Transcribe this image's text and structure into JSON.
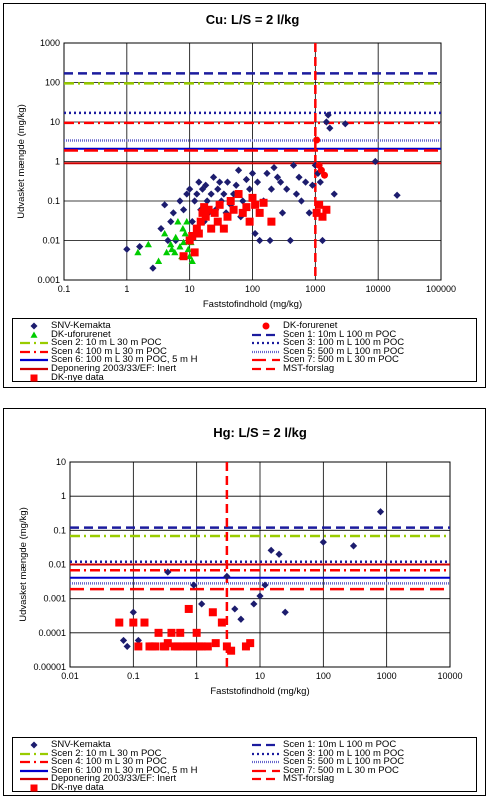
{
  "chart_data": [
    {
      "type": "scatter",
      "title": "Cu: L/S = 2 l/kg",
      "xlabel": "Faststofindhold (mg/kg)",
      "ylabel": "Udvasket mængde (mg/kg)",
      "xscale": "log",
      "yscale": "log",
      "xlim": [
        0.1,
        100000
      ],
      "ylim": [
        0.001,
        1000
      ],
      "xticks": [
        "0.1",
        "1",
        "10",
        "100",
        "1000",
        "10000",
        "100000"
      ],
      "yticks": [
        "0.001",
        "0.01",
        "0.1",
        "1",
        "10",
        "100",
        "1000"
      ],
      "grid": true,
      "hlines": [
        {
          "name": "Scen 1: 10m L 100 m POC",
          "y": 170,
          "color": "#1c1c9e",
          "dash": "dash"
        },
        {
          "name": "Scen 2: 10 m L 30 m POC",
          "y": 95,
          "color": "#99cc00",
          "dash": "dashdot"
        },
        {
          "name": "Scen 3: 100 m L 100 m POC",
          "y": 17,
          "color": "#1c1c9e",
          "dash": "dot"
        },
        {
          "name": "Scen 4: 100 m L 30 m POC",
          "y": 9.5,
          "color": "#ff0000",
          "dash": "dashdot"
        },
        {
          "name": "Scen 5: 500 m L 100 m POC",
          "y": 3.4,
          "color": "#6666cc",
          "dash": "dense"
        },
        {
          "name": "Scen 6: 100 m L 30 m POC, 5 m H",
          "y": 2.1,
          "color": "#0000cc",
          "dash": "solid"
        },
        {
          "name": "Scen 7: 500 m L 30 m POC",
          "y": 1.9,
          "color": "#ff0000",
          "dash": "longdash"
        },
        {
          "name": "Deponering 2003/33/EF: Inert",
          "y": 0.9,
          "color": "#cc0000",
          "dash": "solid"
        }
      ],
      "vlines": [
        {
          "name": "MST-forslag",
          "x": 1000,
          "color": "#ff0000",
          "dash": "dash"
        }
      ],
      "series": [
        {
          "name": "SNV-Kemakta",
          "marker": "diamond",
          "color": "#1c1c6e",
          "x": [
            1,
            1.6,
            2.6,
            3.5,
            4,
            4.5,
            5,
            5.5,
            6,
            7,
            8,
            9,
            10,
            11,
            12,
            13,
            14,
            15,
            16,
            17,
            18,
            19,
            20,
            22,
            24,
            26,
            28,
            30,
            32,
            35,
            38,
            40,
            45,
            50,
            55,
            60,
            65,
            70,
            80,
            90,
            100,
            110,
            120,
            130,
            150,
            170,
            190,
            200,
            220,
            250,
            280,
            300,
            350,
            400,
            450,
            500,
            550,
            600,
            700,
            800,
            900,
            1000,
            1100,
            1200,
            1300,
            1500,
            1600,
            1700,
            2000,
            3000,
            9000,
            20000
          ],
          "y": [
            0.006,
            0.007,
            0.002,
            0.02,
            0.08,
            0.01,
            0.03,
            0.05,
            0.01,
            0.1,
            0.06,
            0.15,
            0.2,
            0.03,
            0.1,
            0.15,
            0.3,
            0.06,
            0.2,
            0.03,
            0.25,
            0.1,
            0.05,
            0.15,
            0.4,
            0.06,
            0.2,
            0.3,
            0.1,
            0.15,
            0.05,
            0.3,
            0.08,
            0.15,
            0.25,
            0.6,
            0.04,
            0.1,
            0.35,
            0.2,
            0.5,
            0.015,
            0.3,
            0.01,
            0.1,
            0.5,
            0.01,
            0.2,
            0.7,
            0.4,
            0.3,
            0.05,
            0.2,
            0.01,
            0.8,
            0.15,
            0.4,
            0.1,
            0.3,
            0.05,
            0.25,
            0.8,
            0.5,
            0.3,
            0.01,
            10,
            15,
            7,
            0.15,
            9,
            1,
            0.14
          ]
        },
        {
          "name": "DK-uforurenet",
          "marker": "triangle",
          "color": "#00cc00",
          "x": [
            1.5,
            2.2,
            3.2,
            4,
            4.3,
            5,
            5.2,
            5.8,
            6,
            6.5,
            7,
            7.5,
            7.8,
            8,
            8.5,
            9,
            9.5,
            10,
            10.5,
            11
          ],
          "y": [
            0.005,
            0.008,
            0.003,
            0.015,
            0.005,
            0.008,
            0.006,
            0.005,
            0.012,
            0.03,
            0.007,
            0.004,
            0.02,
            0.009,
            0.015,
            0.03,
            0.006,
            0.004,
            0.009,
            0.003
          ]
        },
        {
          "name": "DK-forurenet",
          "marker": "circle",
          "color": "#ff0000",
          "x": [
            1050,
            1150,
            1250,
            1400
          ],
          "y": [
            3.5,
            0.8,
            0.6,
            0.45
          ]
        },
        {
          "name": "DK-nye data",
          "marker": "square",
          "color": "#ff0000",
          "x": [
            8,
            10,
            11,
            12,
            13,
            14,
            15,
            16,
            17,
            18,
            20,
            22,
            25,
            28,
            30,
            35,
            40,
            45,
            50,
            60,
            70,
            80,
            90,
            100,
            110,
            130,
            150,
            200,
            1050,
            1150,
            1300,
            1500
          ],
          "y": [
            0.004,
            0.01,
            0.013,
            0.005,
            0.02,
            0.015,
            0.03,
            0.05,
            0.07,
            0.04,
            0.06,
            0.02,
            0.05,
            0.03,
            0.08,
            0.02,
            0.04,
            0.1,
            0.06,
            0.15,
            0.05,
            0.07,
            0.03,
            0.12,
            0.08,
            0.05,
            0.09,
            0.03,
            0.05,
            0.08,
            0.04,
            0.06
          ]
        }
      ],
      "legend": {
        "placement": "bottom",
        "entries": [
          "SNV-Kemakta",
          "DK-uforurenet",
          "Scen 2: 10 m L 30 m POC",
          "Scen 4: 100 m L 30 m POC",
          "Scen 6: 100 m L 30 m POC, 5 m H",
          "Deponering 2003/33/EF: Inert",
          "DK-nye data",
          "DK-forurenet",
          "Scen 1: 10m L 100 m POC",
          "Scen 3: 100 m L 100 m POC",
          "Scen 5: 500 m L 100 m POC",
          "Scen 7: 500 m L 30 m POC",
          "MST-forslag"
        ]
      }
    },
    {
      "type": "scatter",
      "title": "Hg: L/S = 2 l/kg",
      "xlabel": "Faststofindhold (mg/kg)",
      "ylabel": "Udvasket mængde (mg/kg)",
      "xscale": "log",
      "yscale": "log",
      "xlim": [
        0.01,
        10000
      ],
      "ylim": [
        1e-05,
        10
      ],
      "xticks": [
        "0.01",
        "0.1",
        "1",
        "10",
        "100",
        "1000",
        "10000"
      ],
      "yticks": [
        "0.00001",
        "0.0001",
        "0.001",
        "0.01",
        "0.1",
        "1",
        "10"
      ],
      "grid": true,
      "hlines": [
        {
          "name": "Scen 1: 10m L 100 m POC",
          "y": 0.12,
          "color": "#1c1c9e",
          "dash": "dash"
        },
        {
          "name": "Scen 2: 10 m L 30 m POC",
          "y": 0.068,
          "color": "#99cc00",
          "dash": "dashdot"
        },
        {
          "name": "Scen 3: 100 m L 100 m POC",
          "y": 0.012,
          "color": "#1c1c9e",
          "dash": "dot"
        },
        {
          "name": "Scen 4: 100 m L 30 m POC",
          "y": 0.0068,
          "color": "#ff0000",
          "dash": "dashdot"
        },
        {
          "name": "Scen 6: 100 m L 30 m POC, 5 m H",
          "y": 0.0041,
          "color": "#0000cc",
          "dash": "solid"
        },
        {
          "name": "Scen 5: 500 m L 100 m POC",
          "y": 0.0028,
          "color": "#6666cc",
          "dash": "dense"
        },
        {
          "name": "Scen 7: 500 m L 30 m POC",
          "y": 0.0019,
          "color": "#ff0000",
          "dash": "longdash"
        },
        {
          "name": "Deponering 2003/33/EF: Inert",
          "y": 0.01,
          "color": "#cc0000",
          "dash": "solid"
        }
      ],
      "vlines": [
        {
          "name": "MST-forslag",
          "x": 3,
          "color": "#ff0000",
          "dash": "dash"
        }
      ],
      "series": [
        {
          "name": "SNV-Kemakta",
          "marker": "diamond",
          "color": "#1c1c6e",
          "x": [
            0.07,
            0.08,
            0.1,
            0.12,
            0.35,
            0.9,
            1.2,
            3,
            4,
            5,
            8,
            10,
            12,
            15,
            20,
            25,
            100,
            300,
            800
          ],
          "y": [
            6e-05,
            4e-05,
            0.0004,
            6e-05,
            0.006,
            0.0025,
            0.0007,
            0.0045,
            0.0005,
            0.00025,
            0.0007,
            0.0012,
            0.0025,
            0.026,
            0.02,
            0.0004,
            0.045,
            0.035,
            0.35
          ]
        },
        {
          "name": "DK-nye data",
          "marker": "square",
          "color": "#ff0000",
          "x": [
            0.06,
            0.1,
            0.12,
            0.15,
            0.18,
            0.2,
            0.22,
            0.25,
            0.3,
            0.32,
            0.35,
            0.4,
            0.45,
            0.5,
            0.55,
            0.6,
            0.7,
            0.75,
            0.8,
            0.9,
            1,
            1.1,
            1.2,
            1.5,
            1.8,
            2,
            2.5,
            3,
            3.5,
            6,
            7
          ],
          "y": [
            0.0002,
            0.0002,
            4e-05,
            0.0002,
            4e-05,
            4e-05,
            4e-05,
            0.0001,
            4e-05,
            4e-05,
            5e-05,
            0.0001,
            4e-05,
            4e-05,
            0.0001,
            4e-05,
            4e-05,
            0.0005,
            4e-05,
            4e-05,
            0.0001,
            4e-05,
            4e-05,
            4e-05,
            0.0004,
            5e-05,
            0.0002,
            4e-05,
            3e-05,
            4e-05,
            5e-05
          ]
        }
      ],
      "legend": {
        "placement": "bottom",
        "entries": [
          "SNV-Kemakta",
          "Scen 2: 10 m L 30 m POC",
          "Scen 4: 100 m L 30 m POC",
          "Scen 6: 100 m L 30 m POC, 5 m H",
          "Deponering 2003/33/EF: Inert",
          "DK-nye data",
          "Scen 1: 10m L 100 m POC",
          "Scen 3: 100 m L 100 m POC",
          "Scen 5: 500 m L 100 m POC",
          "Scen 7: 500 m L 30 m POC",
          "MST-forslag"
        ]
      }
    }
  ]
}
